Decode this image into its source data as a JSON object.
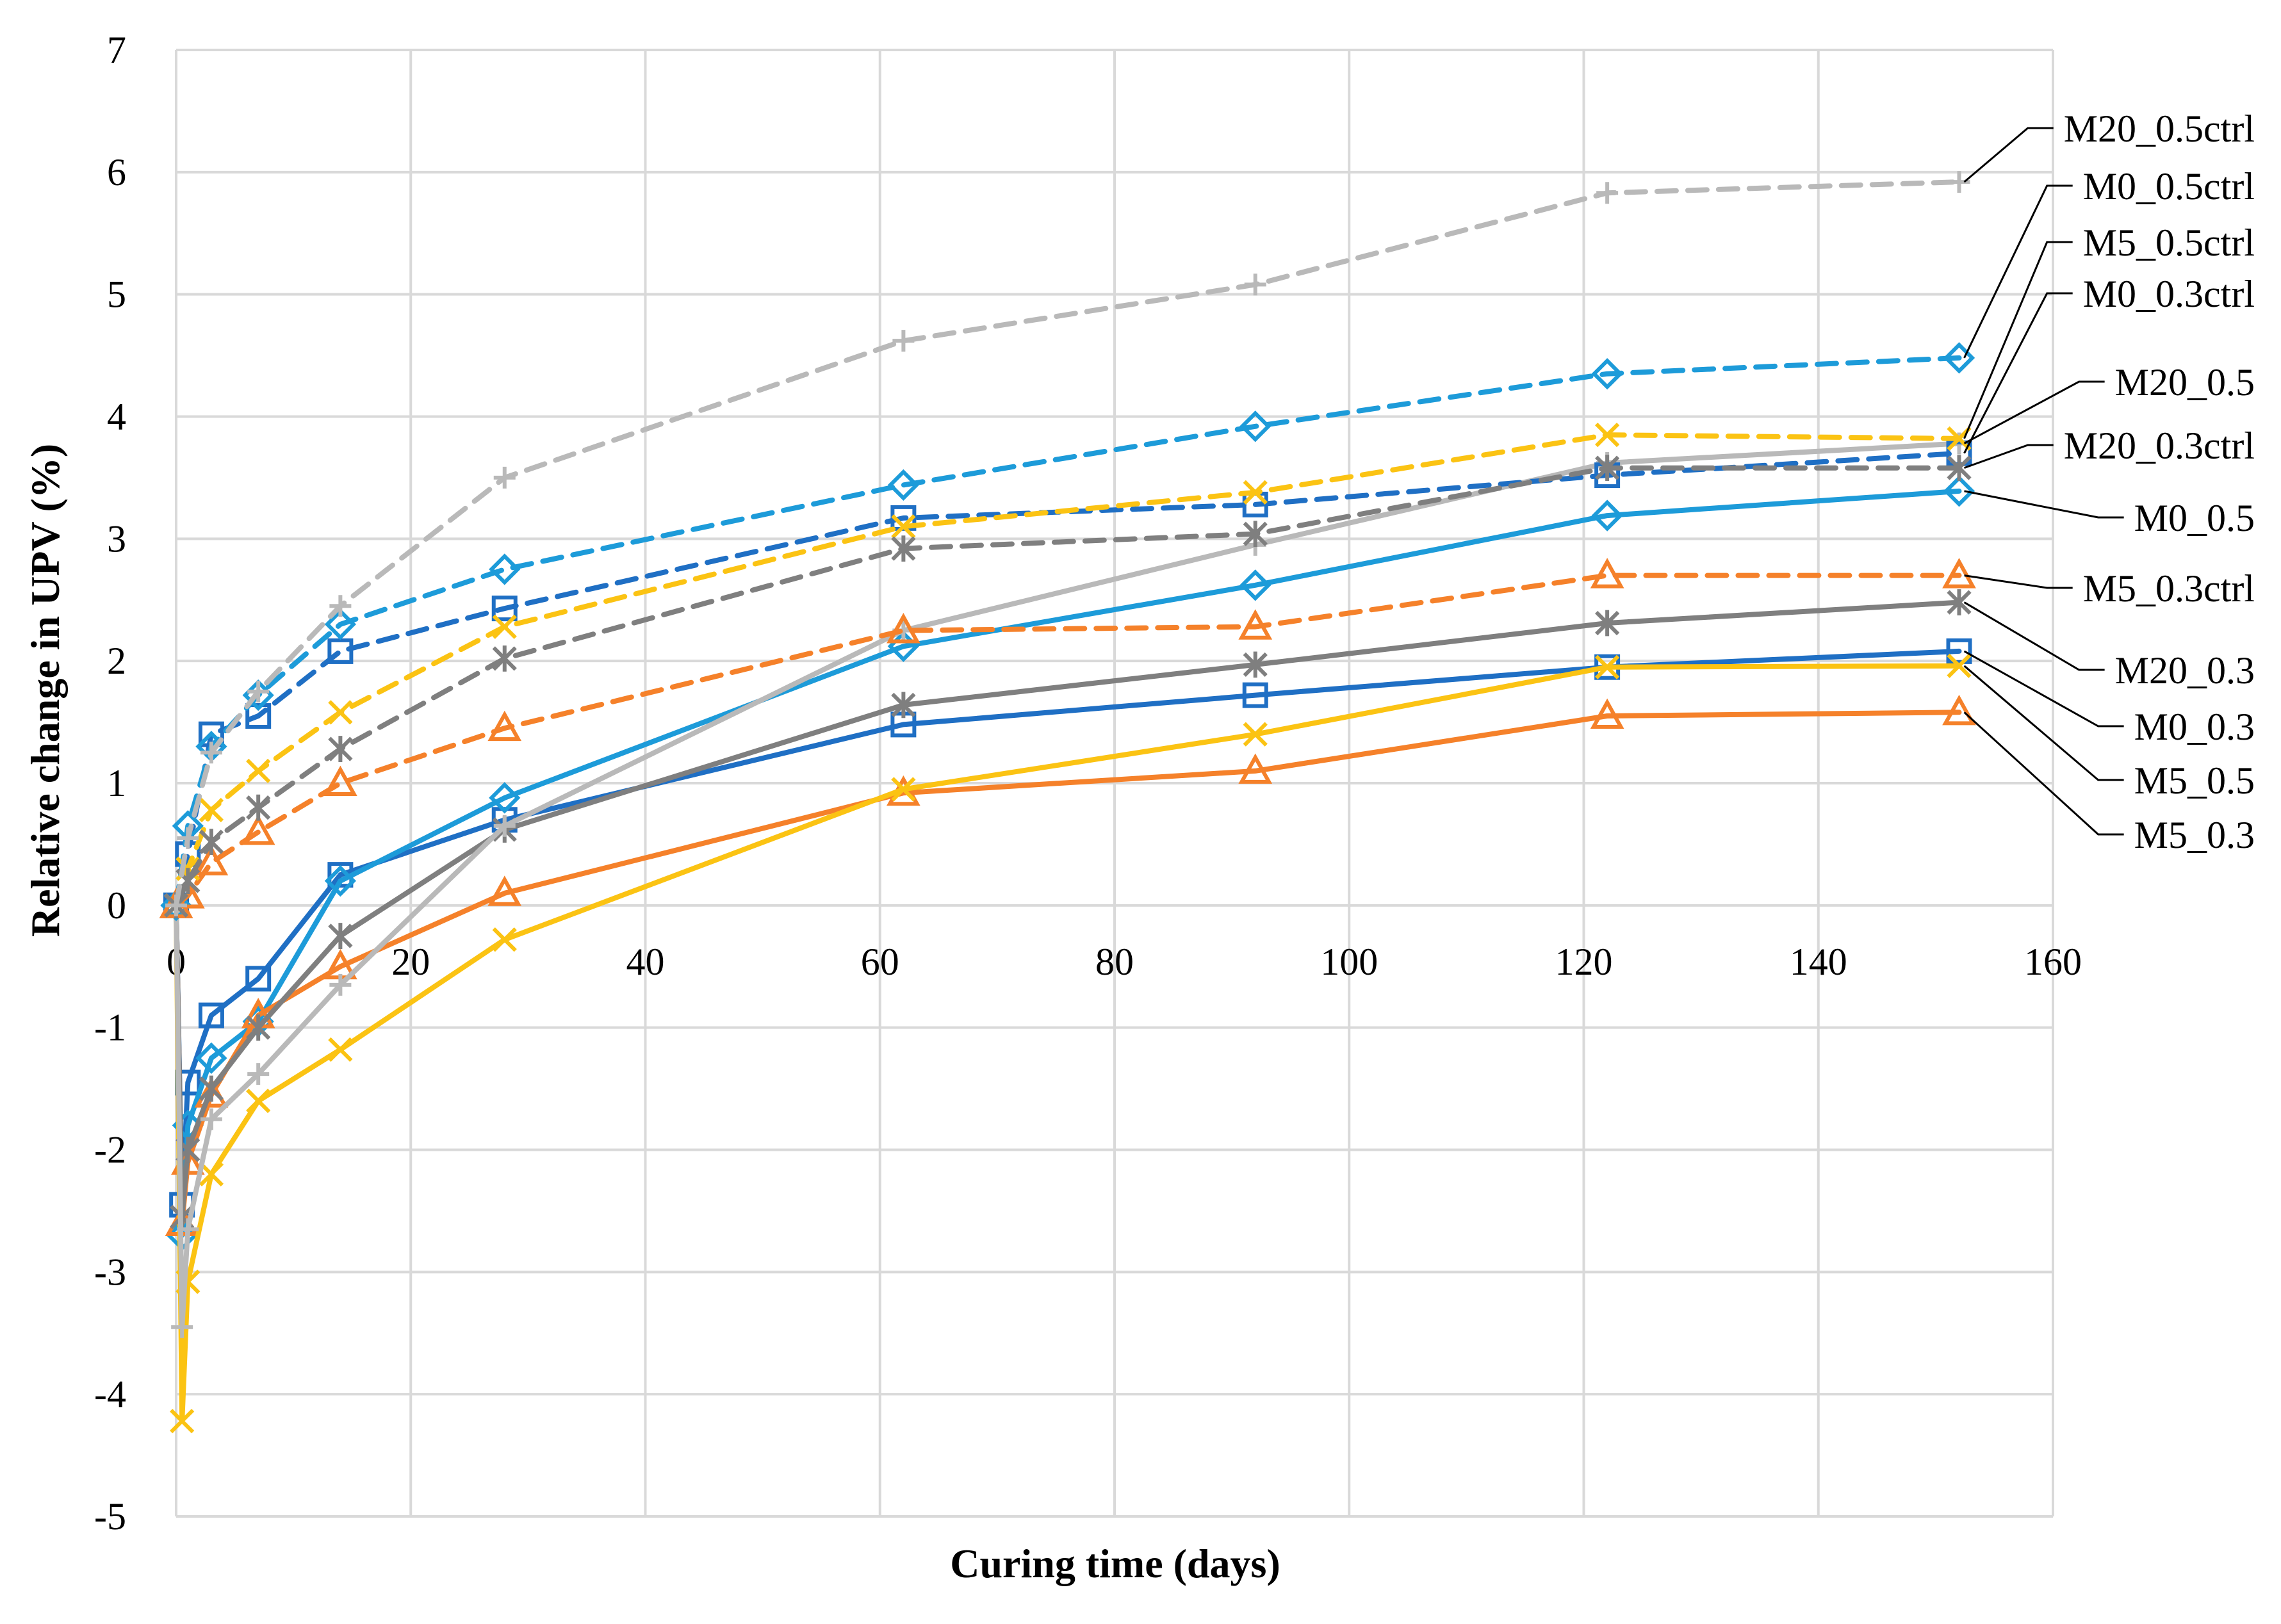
{
  "chart_data": {
    "type": "line",
    "title": "",
    "xlabel": "Curing time (days)",
    "ylabel": "Relative change in UPV (%)",
    "xlim": [
      0,
      160
    ],
    "ylim": [
      -5,
      7
    ],
    "xticks": [
      0,
      20,
      40,
      60,
      80,
      100,
      120,
      140,
      160
    ],
    "yticks": [
      -5,
      -4,
      -3,
      -2,
      -1,
      0,
      1,
      2,
      3,
      4,
      5,
      6,
      7
    ],
    "grid": true,
    "legend_placement": "right (leader-line labels at series ends)",
    "series": [
      {
        "name": "M0_0.3",
        "color": "#1f6fc4",
        "dash": "solid",
        "marker": "square",
        "x": [
          0,
          0.5,
          1,
          3,
          7,
          14,
          28,
          62,
          92,
          122,
          152
        ],
        "y": [
          0,
          -2.45,
          -1.45,
          -0.9,
          -0.6,
          0.25,
          0.7,
          1.48,
          1.72,
          1.95,
          2.08
        ]
      },
      {
        "name": "M0_0.5",
        "color": "#1d9bd9",
        "dash": "solid",
        "marker": "diamond",
        "x": [
          0,
          0.5,
          1,
          3,
          7,
          14,
          28,
          62,
          92,
          122,
          152
        ],
        "y": [
          0,
          -2.7,
          -1.8,
          -1.25,
          -0.95,
          0.2,
          0.88,
          2.12,
          2.62,
          3.19,
          3.39
        ]
      },
      {
        "name": "M5_0.3",
        "color": "#f5812a",
        "dash": "solid",
        "marker": "triangle",
        "x": [
          0,
          0.5,
          1,
          3,
          7,
          14,
          28,
          62,
          92,
          122,
          152
        ],
        "y": [
          0,
          -2.6,
          -2.1,
          -1.55,
          -0.9,
          -0.5,
          0.1,
          0.92,
          1.1,
          1.55,
          1.58
        ]
      },
      {
        "name": "M5_0.5",
        "color": "#fbc313",
        "dash": "solid",
        "marker": "x",
        "x": [
          0,
          0.5,
          1,
          3,
          7,
          14,
          28,
          62,
          92,
          122,
          152
        ],
        "y": [
          0,
          -4.22,
          -3.08,
          -2.2,
          -1.6,
          -1.18,
          -0.28,
          0.95,
          1.4,
          1.95,
          1.96
        ]
      },
      {
        "name": "M20_0.3",
        "color": "#7f7f7f",
        "dash": "solid",
        "marker": "star",
        "x": [
          0,
          0.5,
          1,
          3,
          7,
          14,
          28,
          62,
          92,
          122,
          152
        ],
        "y": [
          0,
          -2.55,
          -2.0,
          -1.5,
          -1.0,
          -0.25,
          0.62,
          1.64,
          1.97,
          2.31,
          2.48
        ]
      },
      {
        "name": "M20_0.5",
        "color": "#b9b9b9",
        "dash": "solid",
        "marker": "plus",
        "x": [
          0,
          0.5,
          1,
          3,
          7,
          14,
          28,
          62,
          92,
          122,
          152
        ],
        "y": [
          0,
          -3.45,
          -2.65,
          -1.75,
          -1.38,
          -0.65,
          0.65,
          2.25,
          2.95,
          3.62,
          3.78
        ]
      },
      {
        "name": "M0_0.3ctrl",
        "color": "#1f6fc4",
        "dash": "dashed",
        "marker": "square",
        "x": [
          0,
          1,
          3,
          7,
          14,
          28,
          62,
          92,
          122,
          152
        ],
        "y": [
          0,
          0.42,
          1.4,
          1.55,
          2.08,
          2.43,
          3.17,
          3.28,
          3.52,
          3.7
        ]
      },
      {
        "name": "M0_0.5ctrl",
        "color": "#1d9bd9",
        "dash": "dashed",
        "marker": "diamond",
        "x": [
          0,
          1,
          3,
          7,
          14,
          28,
          62,
          92,
          122,
          152
        ],
        "y": [
          0,
          0.65,
          1.3,
          1.72,
          2.3,
          2.75,
          3.44,
          3.92,
          4.35,
          4.48
        ]
      },
      {
        "name": "M5_0.3ctrl",
        "color": "#f5812a",
        "dash": "dashed",
        "marker": "triangle",
        "x": [
          0,
          1,
          3,
          7,
          14,
          28,
          62,
          92,
          122,
          152
        ],
        "y": [
          0,
          0.08,
          0.35,
          0.6,
          1.0,
          1.45,
          2.25,
          2.28,
          2.7,
          2.7
        ]
      },
      {
        "name": "M5_0.5ctrl",
        "color": "#fbc313",
        "dash": "dashed",
        "marker": "x",
        "x": [
          0,
          1,
          3,
          7,
          14,
          28,
          62,
          92,
          122,
          152
        ],
        "y": [
          0,
          0.3,
          0.78,
          1.1,
          1.58,
          2.28,
          3.1,
          3.38,
          3.85,
          3.82
        ]
      },
      {
        "name": "M20_0.3ctrl",
        "color": "#7f7f7f",
        "dash": "dashed",
        "marker": "star",
        "x": [
          0,
          1,
          3,
          7,
          14,
          28,
          62,
          92,
          122,
          152
        ],
        "y": [
          0,
          0.2,
          0.52,
          0.8,
          1.28,
          2.02,
          2.92,
          3.04,
          3.58,
          3.58
        ]
      },
      {
        "name": "M20_0.5ctrl",
        "color": "#b9b9b9",
        "dash": "dashed",
        "marker": "plus",
        "x": [
          0,
          1,
          3,
          7,
          14,
          28,
          62,
          92,
          122,
          152
        ],
        "y": [
          0,
          0.55,
          1.25,
          1.75,
          2.45,
          3.5,
          4.62,
          5.08,
          5.83,
          5.92
        ]
      }
    ],
    "end_labels": [
      "M20_0.5ctrl",
      "M0_0.5ctrl",
      "M5_0.5ctrl",
      "M0_0.3ctrl",
      "M20_0.5",
      "M20_0.3ctrl",
      "M0_0.5",
      "M5_0.3ctrl",
      "M20_0.3",
      "M0_0.3",
      "M5_0.5",
      "M5_0.3"
    ]
  }
}
